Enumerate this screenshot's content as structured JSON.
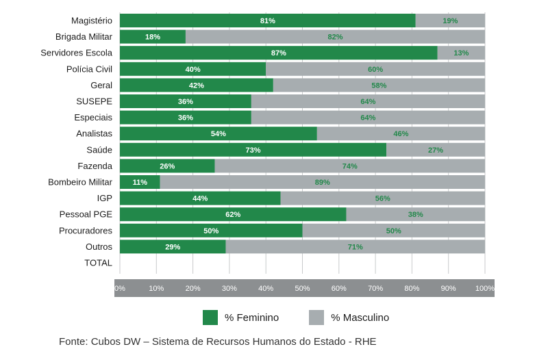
{
  "chart_data": {
    "type": "bar",
    "orientation": "horizontal",
    "stacked": true,
    "categories": [
      "Magistério",
      "Brigada Militar",
      "Servidores Escola",
      "Polícia Civil",
      "Geral",
      "SUSEPE",
      "Especiais",
      "Analistas",
      "Saúde",
      "Fazenda",
      "Bombeiro Militar",
      "IGP",
      "Pessoal PGE",
      "Procuradores",
      "Outros",
      "TOTAL"
    ],
    "series": [
      {
        "name": "% Feminino",
        "color": "#22884a",
        "label_color": "#ffffff",
        "values": [
          81,
          18,
          87,
          40,
          42,
          36,
          36,
          54,
          73,
          26,
          11,
          44,
          62,
          50,
          29,
          null
        ],
        "labels": [
          "81%",
          "18%",
          "87%",
          "40%",
          "42%",
          "36%",
          "36%",
          "54%",
          "73%",
          "26%",
          "11%",
          "44%",
          "62%",
          "50%",
          "29%",
          ""
        ]
      },
      {
        "name": "% Masculino",
        "color": "#a7adb0",
        "label_color": "#22884a",
        "values": [
          19,
          82,
          13,
          60,
          58,
          64,
          64,
          46,
          27,
          74,
          89,
          56,
          38,
          50,
          71,
          null
        ],
        "labels": [
          "19%",
          "82%",
          "13%",
          "60%",
          "58%",
          "64%",
          "64%",
          "46%",
          "27%",
          "74%",
          "89%",
          "56%",
          "38%",
          "50%",
          "71%",
          ""
        ]
      }
    ],
    "xlim": [
      0,
      100
    ],
    "x_ticks": [
      "0%",
      "10%",
      "20%",
      "30%",
      "40%",
      "50%",
      "60%",
      "70%",
      "80%",
      "90%",
      "100%"
    ],
    "grid": true,
    "legend_position": "bottom"
  },
  "legend": {
    "items": [
      {
        "label": "% Feminino",
        "color": "#22884a"
      },
      {
        "label": "% Masculino",
        "color": "#a7adb0"
      }
    ]
  },
  "source_note": "Fonte: Cubos DW – Sistema de Recursos Humanos do Estado - RHE",
  "colors": {
    "axis_band": "#8c8f91",
    "grid": "#c8cacb",
    "axis_text": "#ffffff"
  }
}
